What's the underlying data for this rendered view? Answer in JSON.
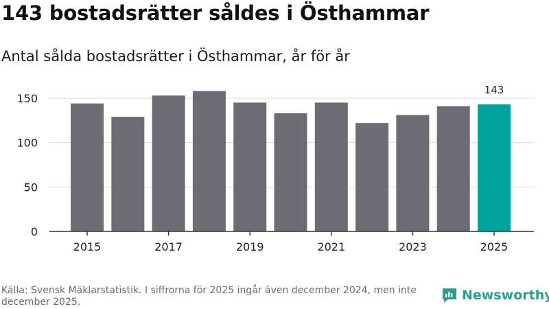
{
  "title": "143 bostadsrätter såldes i Östhammar",
  "subtitle": "Antal sålda bostadsrätter i Östhammar, år för år",
  "source": "Källa: Svensk Mäklarstatistik. I siffrorna för 2025 ingår även december 2024, men inte december 2025.",
  "brand": "Newsworthy",
  "colors": {
    "bar": "#6d6c72",
    "highlight": "#00a39a",
    "grid": "#d9d9d9",
    "axis": "#333333",
    "brand": "#2a9d8f"
  },
  "chart_data": {
    "type": "bar",
    "title": "143 bostadsrätter såldes i Östhammar",
    "subtitle": "Antal sålda bostadsrätter i Östhammar, år för år",
    "xlabel": "",
    "ylabel": "",
    "categories": [
      "2015",
      "2016",
      "2017",
      "2018",
      "2019",
      "2020",
      "2021",
      "2022",
      "2023",
      "2024",
      "2025"
    ],
    "values": [
      144,
      129,
      153,
      158,
      145,
      133,
      145,
      122,
      131,
      141,
      143
    ],
    "highlight_index": 10,
    "data_labels": [
      {
        "index": 10,
        "text": "143"
      }
    ],
    "x_ticks": [
      "2015",
      "2017",
      "2019",
      "2021",
      "2023",
      "2025"
    ],
    "y_ticks": [
      0,
      50,
      100,
      150
    ],
    "ylim": [
      0,
      160
    ],
    "grid": true,
    "legend": "none"
  }
}
